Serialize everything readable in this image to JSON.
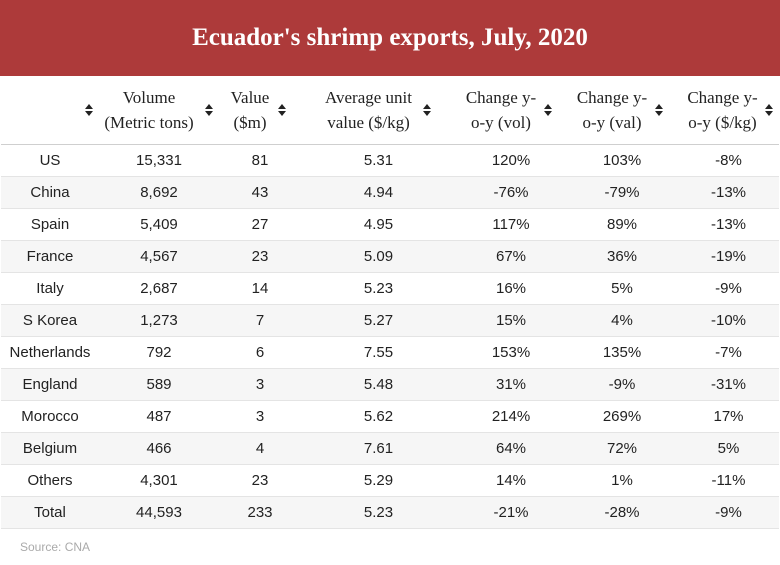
{
  "title": "Ecuador's shrimp exports, July, 2020",
  "source": "Source: CNA",
  "chart_data": {
    "type": "table",
    "title": "Ecuador's shrimp exports, July, 2020",
    "columns": [
      "",
      "Volume (Metric tons)",
      "Value ($m)",
      "Average unit value ($/kg)",
      "Change y-o-y (vol)",
      "Change y-o-y (val)",
      "Change y-o-y ($/kg)"
    ],
    "rows": [
      [
        "US",
        "15,331",
        "81",
        "5.31",
        "120%",
        "103%",
        "-8%"
      ],
      [
        "China",
        "8,692",
        "43",
        "4.94",
        "-76%",
        "-79%",
        "-13%"
      ],
      [
        "Spain",
        "5,409",
        "27",
        "4.95",
        "117%",
        "89%",
        "-13%"
      ],
      [
        "France",
        "4,567",
        "23",
        "5.09",
        "67%",
        "36%",
        "-19%"
      ],
      [
        "Italy",
        "2,687",
        "14",
        "5.23",
        "16%",
        "5%",
        "-9%"
      ],
      [
        "S Korea",
        "1,273",
        "7",
        "5.27",
        "15%",
        "4%",
        "-10%"
      ],
      [
        "Netherlands",
        "792",
        "6",
        "7.55",
        "153%",
        "135%",
        "-7%"
      ],
      [
        "England",
        "589",
        "3",
        "5.48",
        "31%",
        "-9%",
        "-31%"
      ],
      [
        "Morocco",
        "487",
        "3",
        "5.62",
        "214%",
        "269%",
        "17%"
      ],
      [
        "Belgium",
        "466",
        "4",
        "7.61",
        "64%",
        "72%",
        "5%"
      ],
      [
        "Others",
        "4,301",
        "23",
        "5.29",
        "14%",
        "1%",
        "-11%"
      ],
      [
        "Total",
        "44,593",
        "233",
        "5.23",
        "-21%",
        "-28%",
        "-9%"
      ]
    ]
  },
  "colors": {
    "title_bg": "#ad3a3a",
    "title_text": "#ffffff",
    "stripe": "#f6f6f6",
    "source_text": "#aaaaaa"
  },
  "icons": {
    "sort": "sort-icon"
  }
}
